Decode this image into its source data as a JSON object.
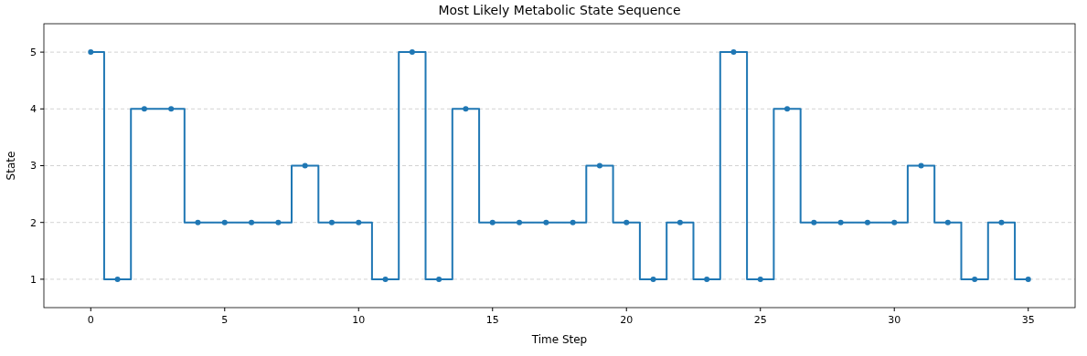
{
  "chart_data": {
    "type": "step",
    "title": "Most Likely Metabolic State Sequence",
    "xlabel": "Time Step",
    "ylabel": "State",
    "x": [
      0,
      1,
      2,
      3,
      4,
      5,
      6,
      7,
      8,
      9,
      10,
      11,
      12,
      13,
      14,
      15,
      16,
      17,
      18,
      19,
      20,
      21,
      22,
      23,
      24,
      25,
      26,
      27,
      28,
      29,
      30,
      31,
      32,
      33,
      34,
      35
    ],
    "series": [
      {
        "color": "#1f77b4",
        "values": [
          5,
          1,
          4,
          4,
          2,
          2,
          2,
          2,
          3,
          2,
          2,
          1,
          5,
          1,
          4,
          2,
          2,
          2,
          2,
          3,
          2,
          1,
          2,
          1,
          5,
          1,
          4,
          2,
          2,
          2,
          2,
          3,
          2,
          1,
          2,
          1
        ]
      }
    ],
    "xlim": [
      -1.75,
      36.75
    ],
    "ylim": [
      0.5,
      5.5
    ],
    "xticks": [
      0,
      5,
      10,
      15,
      20,
      25,
      30,
      35
    ],
    "yticks": [
      1,
      2,
      3,
      4,
      5
    ],
    "grid": "y",
    "marker": "circle",
    "line_style": "solid"
  }
}
